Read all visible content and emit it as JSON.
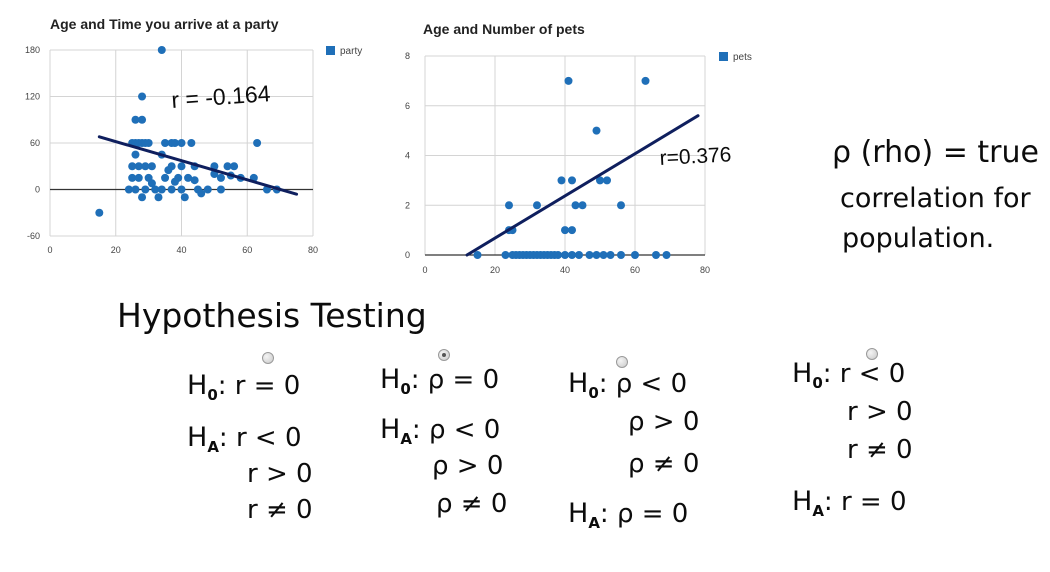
{
  "chart_data": [
    {
      "type": "scatter",
      "title": "Age and Time you arrive at a party",
      "legend": "party",
      "legend_position": "top-right",
      "xlim": [
        0,
        80
      ],
      "ylim": [
        -60,
        180
      ],
      "x_ticks": [
        "0",
        "20",
        "40",
        "60",
        "80"
      ],
      "y_ticks": [
        "180",
        "120",
        "60",
        "0",
        "-60"
      ],
      "grid": true,
      "color": "#1f6fb8",
      "trendline": {
        "x1": 15,
        "y1": 68,
        "x2": 75,
        "y2": -6
      },
      "annotation": "r = -0.164",
      "points": [
        [
          15,
          -30
        ],
        [
          34,
          180
        ],
        [
          28,
          120
        ],
        [
          26,
          90
        ],
        [
          28,
          90
        ],
        [
          25,
          60
        ],
        [
          26,
          60
        ],
        [
          27,
          60
        ],
        [
          28,
          60
        ],
        [
          29,
          60
        ],
        [
          30,
          60
        ],
        [
          35,
          60
        ],
        [
          37,
          60
        ],
        [
          38,
          60
        ],
        [
          40,
          60
        ],
        [
          43,
          60
        ],
        [
          63,
          60
        ],
        [
          26,
          45
        ],
        [
          34,
          45
        ],
        [
          25,
          30
        ],
        [
          27,
          30
        ],
        [
          29,
          30
        ],
        [
          31,
          30
        ],
        [
          37,
          30
        ],
        [
          40,
          30
        ],
        [
          44,
          30
        ],
        [
          50,
          30
        ],
        [
          54,
          30
        ],
        [
          56,
          30
        ],
        [
          25,
          15
        ],
        [
          27,
          15
        ],
        [
          30,
          15
        ],
        [
          35,
          15
        ],
        [
          39,
          15
        ],
        [
          42,
          15
        ],
        [
          52,
          15
        ],
        [
          58,
          15
        ],
        [
          62,
          15
        ],
        [
          24,
          0
        ],
        [
          26,
          0
        ],
        [
          29,
          0
        ],
        [
          32,
          0
        ],
        [
          34,
          0
        ],
        [
          37,
          0
        ],
        [
          40,
          0
        ],
        [
          45,
          0
        ],
        [
          48,
          0
        ],
        [
          52,
          0
        ],
        [
          66,
          0
        ],
        [
          69,
          0
        ],
        [
          28,
          -10
        ],
        [
          33,
          -10
        ],
        [
          41,
          -10
        ],
        [
          46,
          -5
        ],
        [
          31,
          8
        ],
        [
          36,
          25
        ],
        [
          38,
          10
        ],
        [
          44,
          12
        ],
        [
          50,
          20
        ],
        [
          55,
          18
        ]
      ]
    },
    {
      "type": "scatter",
      "title": "Age and Number of pets",
      "legend": "pets",
      "legend_position": "top-right",
      "xlim": [
        0,
        80
      ],
      "ylim": [
        0,
        8
      ],
      "x_ticks": [
        "0",
        "20",
        "40",
        "60",
        "80"
      ],
      "y_ticks": [
        "8",
        "6",
        "4",
        "2",
        "0"
      ],
      "grid": true,
      "color": "#1f6fb8",
      "trendline": {
        "x1": 12,
        "y1": 0,
        "x2": 78,
        "y2": 5.6
      },
      "annotation": "r=0.376",
      "points": [
        [
          41,
          7
        ],
        [
          63,
          7
        ],
        [
          49,
          5
        ],
        [
          39,
          3
        ],
        [
          42,
          3
        ],
        [
          50,
          3
        ],
        [
          52,
          3
        ],
        [
          24,
          2
        ],
        [
          32,
          2
        ],
        [
          43,
          2
        ],
        [
          45,
          2
        ],
        [
          56,
          2
        ],
        [
          24,
          1
        ],
        [
          25,
          1
        ],
        [
          40,
          1
        ],
        [
          42,
          1
        ],
        [
          15,
          0
        ],
        [
          23,
          0
        ],
        [
          25,
          0
        ],
        [
          26,
          0
        ],
        [
          27,
          0
        ],
        [
          28,
          0
        ],
        [
          29,
          0
        ],
        [
          30,
          0
        ],
        [
          31,
          0
        ],
        [
          32,
          0
        ],
        [
          33,
          0
        ],
        [
          34,
          0
        ],
        [
          35,
          0
        ],
        [
          36,
          0
        ],
        [
          37,
          0
        ],
        [
          38,
          0
        ],
        [
          40,
          0
        ],
        [
          42,
          0
        ],
        [
          44,
          0
        ],
        [
          47,
          0
        ],
        [
          49,
          0
        ],
        [
          51,
          0
        ],
        [
          53,
          0
        ],
        [
          56,
          0
        ],
        [
          60,
          0
        ],
        [
          66,
          0
        ],
        [
          69,
          0
        ]
      ]
    }
  ],
  "rho_note": [
    "ρ (rho) = true",
    "correlation for",
    "population."
  ],
  "hypothesis_title": "Hypothesis Testing",
  "options": [
    {
      "selected": false,
      "lines": [
        {
          "label": "H",
          "sub": "0",
          "expr": "r = 0"
        },
        {
          "label": "H",
          "sub": "A",
          "expr": "r < 0"
        },
        {
          "label": "",
          "sub": "",
          "expr": "r > 0"
        },
        {
          "label": "",
          "sub": "",
          "expr": "r ≠ 0"
        }
      ]
    },
    {
      "selected": true,
      "lines": [
        {
          "label": "H",
          "sub": "0",
          "expr": "ρ = 0"
        },
        {
          "label": "H",
          "sub": "A",
          "expr": "ρ < 0"
        },
        {
          "label": "",
          "sub": "",
          "expr": "ρ > 0"
        },
        {
          "label": "",
          "sub": "",
          "expr": "ρ ≠ 0"
        }
      ]
    },
    {
      "selected": false,
      "lines": [
        {
          "label": "H",
          "sub": "0",
          "expr": "ρ < 0"
        },
        {
          "label": "",
          "sub": "",
          "expr": "ρ > 0"
        },
        {
          "label": "",
          "sub": "",
          "expr": "ρ ≠ 0"
        },
        {
          "label": "H",
          "sub": "A",
          "expr": "ρ = 0"
        }
      ]
    },
    {
      "selected": false,
      "lines": [
        {
          "label": "H",
          "sub": "0",
          "expr": "r < 0"
        },
        {
          "label": "",
          "sub": "",
          "expr": "r > 0"
        },
        {
          "label": "",
          "sub": "",
          "expr": "r ≠ 0"
        },
        {
          "label": "H",
          "sub": "A",
          "expr": "r = 0"
        }
      ]
    }
  ]
}
